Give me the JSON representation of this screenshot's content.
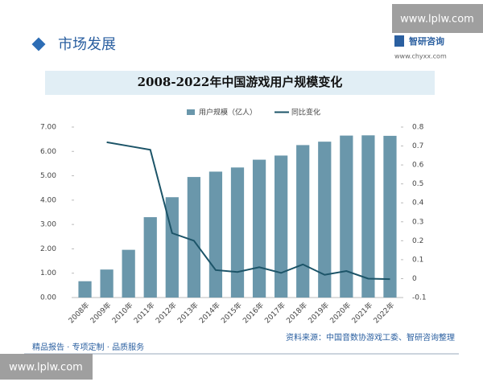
{
  "header": {
    "section": "市场发展",
    "brand": "智研咨询",
    "site": "www.chyxx.com"
  },
  "watermarks": [
    "www.lplw.com",
    "www.lplw.com"
  ],
  "chart_data": {
    "type": "bar",
    "title": "2008-2022年中国游戏用户规模变化",
    "categories": [
      "2008年",
      "2009年",
      "2010年",
      "2011年",
      "2012年",
      "2013年",
      "2014年",
      "2015年",
      "2016年",
      "2017年",
      "2018年",
      "2019年",
      "2020年",
      "2021年",
      "2022年"
    ],
    "series": [
      {
        "name": "用户规模（亿人）",
        "type": "bar",
        "color": "#6a97ab",
        "values": [
          0.67,
          1.15,
          1.96,
          3.3,
          4.12,
          4.95,
          5.17,
          5.34,
          5.66,
          5.83,
          6.26,
          6.4,
          6.65,
          6.66,
          6.64
        ]
      },
      {
        "name": "同比变化",
        "type": "line",
        "axis": "y2",
        "color": "#1c5468",
        "values": [
          null,
          0.72,
          0.7,
          0.68,
          0.24,
          0.2,
          0.045,
          0.035,
          0.06,
          0.03,
          0.075,
          0.02,
          0.04,
          0.0,
          -0.003
        ]
      }
    ],
    "ylim": [
      0,
      7
    ],
    "yticks": [
      {
        "value": 0,
        "label": "0.00"
      },
      {
        "value": 1,
        "label": "1.00"
      },
      {
        "value": 2,
        "label": "2.00"
      },
      {
        "value": 3,
        "label": "3.00"
      },
      {
        "value": 4,
        "label": "4.00"
      },
      {
        "value": 5,
        "label": "5.00"
      },
      {
        "value": 6,
        "label": "6.00"
      },
      {
        "value": 7,
        "label": "7.00"
      }
    ],
    "y2lim": [
      -0.1,
      0.8
    ],
    "y2ticks": [
      -0.1,
      0,
      0.1,
      0.2,
      0.3,
      0.4,
      0.5,
      0.6,
      0.7,
      0.8
    ],
    "legend": "top",
    "source": "资料来源：中国音数协游戏工委、智研咨询整理",
    "footer": "精品报告 · 专项定制 · 品质服务"
  }
}
